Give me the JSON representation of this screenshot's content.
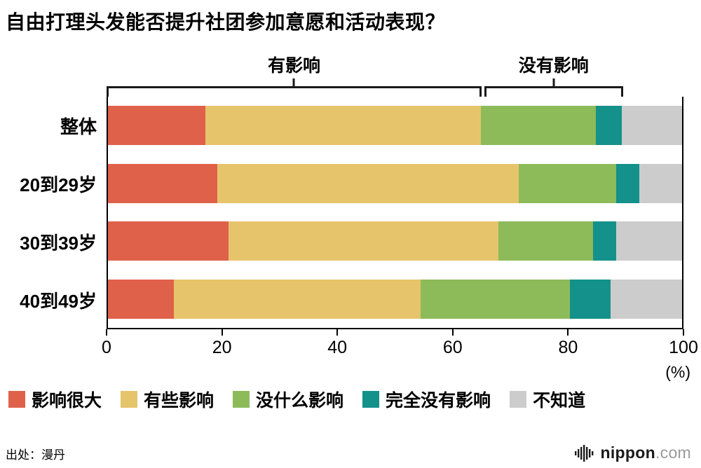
{
  "title": "自由打理头发能否提升社团参加意愿和活动表现？",
  "brackets": [
    {
      "label": "有影响",
      "from": 0,
      "to": 65
    },
    {
      "label": "没有影响",
      "from": 65.5,
      "to": 89.5
    }
  ],
  "chart_data": {
    "type": "bar",
    "stacked": true,
    "orientation": "horizontal",
    "title": "自由打理头发能否提升社团参加意愿和活动表现？",
    "categories": [
      "整体",
      "20到29岁",
      "30到39岁",
      "40到49岁"
    ],
    "series": [
      {
        "name": "影响很大",
        "color": "#e0614a",
        "values": [
          17,
          19,
          21,
          11.5
        ]
      },
      {
        "name": "有些影响",
        "color": "#e6c46c",
        "values": [
          48,
          52.5,
          47,
          43
        ]
      },
      {
        "name": "没什么影响",
        "color": "#8dbb59",
        "values": [
          20,
          17,
          16.5,
          26
        ]
      },
      {
        "name": "完全没有影响",
        "color": "#13918a",
        "values": [
          4.5,
          4,
          4,
          7
        ]
      },
      {
        "name": "不知道",
        "color": "#cccccc",
        "values": [
          10.5,
          7.5,
          11.5,
          12.5
        ]
      }
    ],
    "xlim": [
      0,
      100
    ],
    "ticks": [
      0,
      20,
      40,
      60,
      80,
      100
    ],
    "unit_label": "(%)",
    "legend_position": "bottom",
    "grid": false
  },
  "source": "出处：漫丹",
  "logo": {
    "name": "nippon",
    "tld": ".com"
  }
}
